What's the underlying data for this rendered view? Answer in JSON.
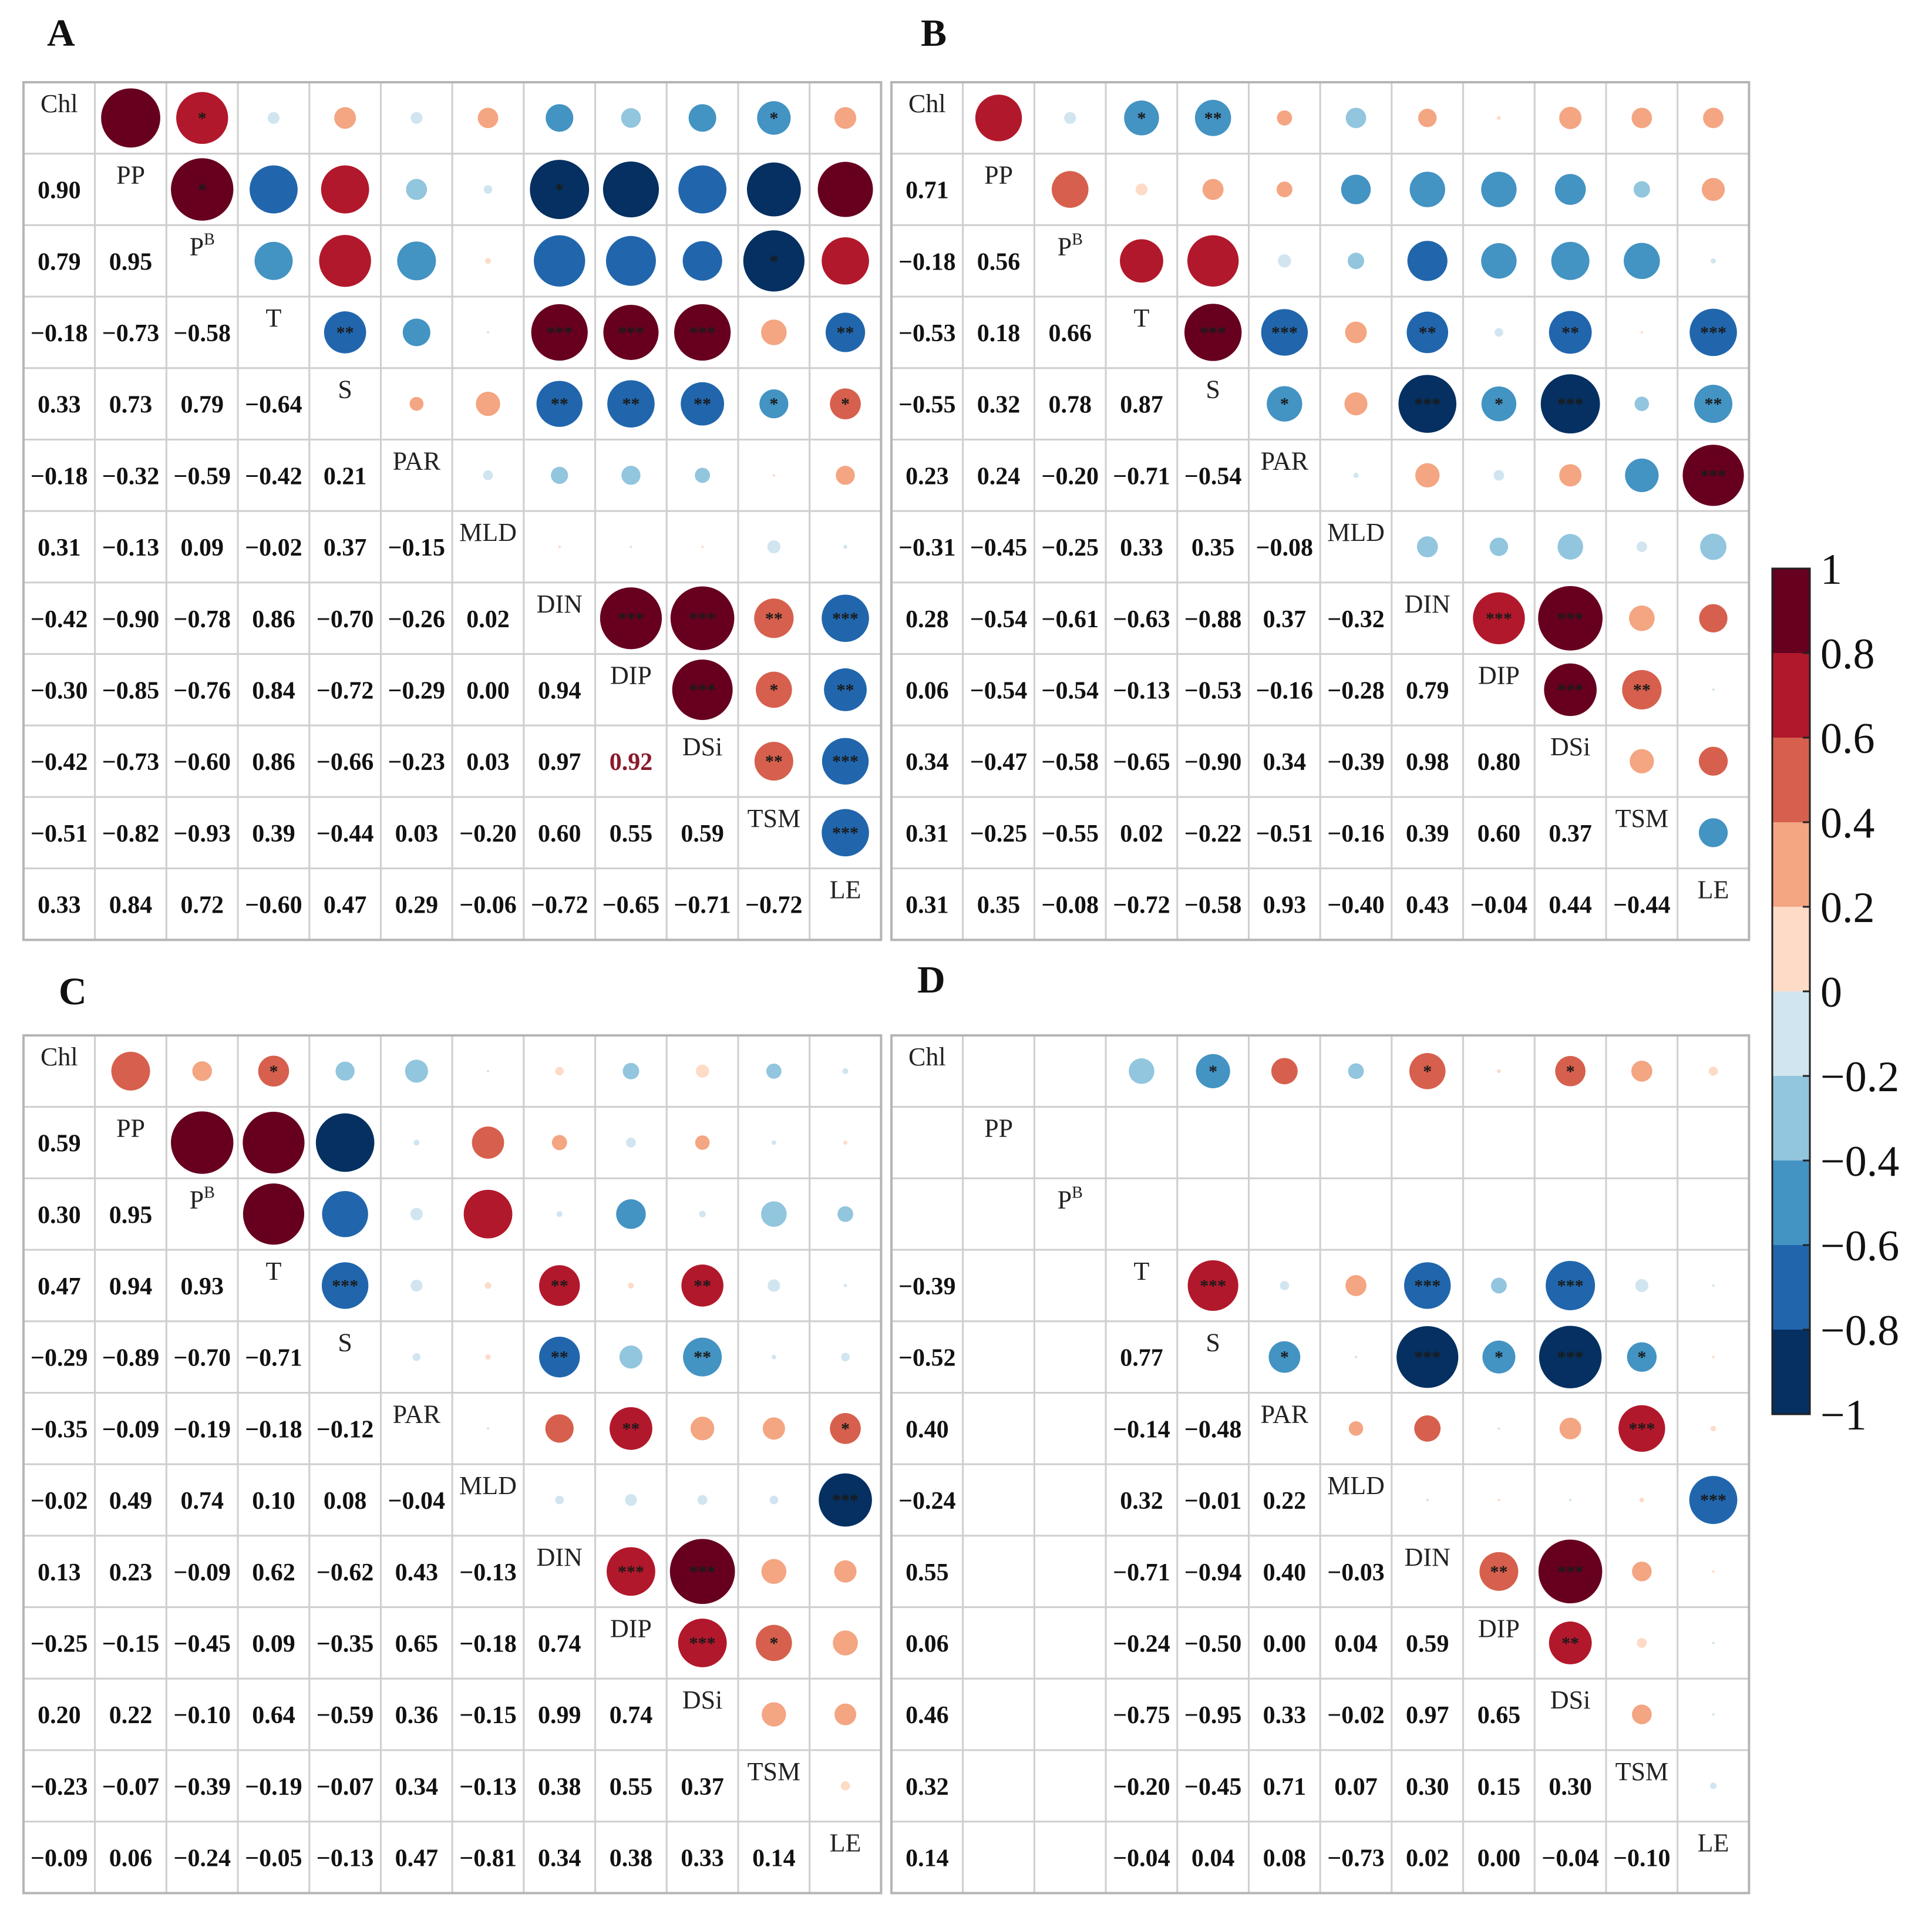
{
  "chart_data": {
    "type": "heatmap",
    "subtype": "correlation-matrix",
    "variables": [
      "Chl",
      "PP",
      "PB",
      "T",
      "S",
      "PAR",
      "MLD",
      "DIN",
      "DIP",
      "DSi",
      "TSM",
      "LE"
    ],
    "colorbar": {
      "range": [
        -1,
        1
      ],
      "ticks": [
        "1",
        "0.8",
        "0.6",
        "0.4",
        "0.2",
        "0",
        "−0.2",
        "−0.4",
        "−0.6",
        "−0.8",
        "−1"
      ],
      "colors": [
        "#67001f",
        "#b2182b",
        "#d6604d",
        "#f4a582",
        "#fddbc7",
        "#d1e5f0",
        "#92c5de",
        "#4393c3",
        "#2166ac",
        "#053061"
      ]
    },
    "panels": [
      {
        "label": "A",
        "lower": [
          [],
          [
            0.9
          ],
          [
            0.79,
            0.95
          ],
          [
            -0.18,
            -0.73,
            -0.58
          ],
          [
            0.33,
            0.73,
            0.79,
            -0.64
          ],
          [
            -0.18,
            -0.32,
            -0.59,
            -0.42,
            0.21
          ],
          [
            0.31,
            -0.13,
            0.09,
            -0.02,
            0.37,
            -0.15
          ],
          [
            -0.42,
            -0.9,
            -0.78,
            0.86,
            -0.7,
            -0.26,
            0.02
          ],
          [
            -0.3,
            -0.85,
            -0.76,
            0.84,
            -0.72,
            -0.29,
            0.0,
            0.94
          ],
          [
            -0.42,
            -0.73,
            -0.6,
            0.86,
            -0.66,
            -0.23,
            0.03,
            0.97,
            0.92
          ],
          [
            -0.51,
            -0.82,
            -0.93,
            0.39,
            -0.44,
            0.03,
            -0.2,
            0.6,
            0.55,
            0.59
          ],
          [
            0.33,
            0.84,
            0.72,
            -0.6,
            0.47,
            0.29,
            -0.06,
            -0.72,
            -0.65,
            -0.71,
            -0.72
          ]
        ],
        "sig": [
          [
            null,
            "",
            "*",
            "",
            "",
            "",
            "",
            "",
            "",
            "",
            "*",
            ""
          ],
          [
            null,
            null,
            "*",
            "",
            "",
            "",
            "",
            "*",
            "",
            "",
            "",
            ""
          ],
          [
            null,
            null,
            null,
            "",
            "",
            "",
            "",
            "",
            "",
            "",
            "*",
            ""
          ],
          [
            null,
            null,
            null,
            null,
            "**",
            "",
            "",
            "***",
            "***",
            "***",
            "",
            "**"
          ],
          [
            null,
            null,
            null,
            null,
            null,
            "",
            "",
            "**",
            "**",
            "**",
            "*",
            "*"
          ],
          [
            null,
            null,
            null,
            null,
            null,
            null,
            "",
            "",
            "",
            "",
            "",
            ""
          ],
          [
            null,
            null,
            null,
            null,
            null,
            null,
            null,
            "",
            "",
            "",
            "",
            ""
          ],
          [
            null,
            null,
            null,
            null,
            null,
            null,
            null,
            null,
            "***",
            "***",
            "**",
            "***"
          ],
          [
            null,
            null,
            null,
            null,
            null,
            null,
            null,
            null,
            null,
            "***",
            "*",
            "**"
          ],
          [
            null,
            null,
            null,
            null,
            null,
            null,
            null,
            null,
            null,
            null,
            "**",
            "***"
          ],
          [
            null,
            null,
            null,
            null,
            null,
            null,
            null,
            null,
            null,
            null,
            null,
            "***"
          ]
        ],
        "highlight": {
          "row": 9,
          "col": 8,
          "color": "#8b1a2b"
        }
      },
      {
        "label": "B",
        "lower": [
          [],
          [
            0.71
          ],
          [
            -0.18,
            0.56
          ],
          [
            -0.53,
            0.18,
            0.66
          ],
          [
            -0.55,
            0.32,
            0.78,
            0.87
          ],
          [
            0.23,
            0.24,
            -0.2,
            -0.71,
            -0.54
          ],
          [
            -0.31,
            -0.45,
            -0.25,
            0.33,
            0.35,
            -0.08
          ],
          [
            0.28,
            -0.54,
            -0.61,
            -0.63,
            -0.88,
            0.37,
            -0.32
          ],
          [
            0.06,
            -0.54,
            -0.54,
            -0.13,
            -0.53,
            -0.16,
            -0.28,
            0.79
          ],
          [
            0.34,
            -0.47,
            -0.58,
            -0.65,
            -0.9,
            0.34,
            -0.39,
            0.98,
            0.8
          ],
          [
            0.31,
            -0.25,
            -0.55,
            0.02,
            -0.22,
            -0.51,
            -0.16,
            0.39,
            0.6,
            0.37
          ],
          [
            0.31,
            0.35,
            -0.08,
            -0.72,
            -0.58,
            0.93,
            -0.4,
            0.43,
            -0.04,
            0.44,
            -0.44
          ]
        ],
        "sig": [
          [
            null,
            "",
            "",
            "*",
            "**",
            "",
            "",
            "",
            "",
            "",
            "",
            ""
          ],
          [
            null,
            null,
            "",
            "",
            "",
            "",
            "",
            "",
            "",
            "",
            "",
            ""
          ],
          [
            null,
            null,
            null,
            "",
            "",
            "",
            "",
            "",
            "",
            "",
            "",
            ""
          ],
          [
            null,
            null,
            null,
            null,
            "***",
            "***",
            "",
            "**",
            "",
            "**",
            "",
            "***"
          ],
          [
            null,
            null,
            null,
            null,
            null,
            "*",
            "",
            "***",
            "*",
            "***",
            "",
            "**"
          ],
          [
            null,
            null,
            null,
            null,
            null,
            null,
            "",
            "",
            "",
            "",
            "",
            "***"
          ],
          [
            null,
            null,
            null,
            null,
            null,
            null,
            null,
            "",
            "",
            "",
            "",
            ""
          ],
          [
            null,
            null,
            null,
            null,
            null,
            null,
            null,
            null,
            "***",
            "***",
            "",
            ""
          ],
          [
            null,
            null,
            null,
            null,
            null,
            null,
            null,
            null,
            null,
            "***",
            "**",
            ""
          ],
          [
            null,
            null,
            null,
            null,
            null,
            null,
            null,
            null,
            null,
            null,
            "",
            ""
          ],
          [
            null,
            null,
            null,
            null,
            null,
            null,
            null,
            null,
            null,
            null,
            null,
            ""
          ]
        ]
      },
      {
        "label": "C",
        "lower": [
          [],
          [
            0.59
          ],
          [
            0.3,
            0.95
          ],
          [
            0.47,
            0.94,
            0.93
          ],
          [
            -0.29,
            -0.89,
            -0.7,
            -0.71
          ],
          [
            -0.35,
            -0.09,
            -0.19,
            -0.18,
            -0.12
          ],
          [
            -0.02,
            0.49,
            0.74,
            0.1,
            0.08,
            -0.04
          ],
          [
            0.13,
            0.23,
            -0.09,
            0.62,
            -0.62,
            0.43,
            -0.13
          ],
          [
            -0.25,
            -0.15,
            -0.45,
            0.09,
            -0.35,
            0.65,
            -0.18,
            0.74
          ],
          [
            0.2,
            0.22,
            -0.1,
            0.64,
            -0.59,
            0.36,
            -0.15,
            0.99,
            0.74
          ],
          [
            -0.23,
            -0.07,
            -0.39,
            -0.19,
            -0.07,
            0.34,
            -0.13,
            0.38,
            0.55,
            0.37
          ],
          [
            -0.09,
            0.06,
            -0.24,
            -0.05,
            -0.13,
            0.47,
            -0.81,
            0.34,
            0.38,
            0.33,
            0.14
          ]
        ],
        "sig": [
          [
            null,
            "",
            "",
            "*",
            "",
            "",
            "",
            "",
            "",
            "",
            "",
            ""
          ],
          [
            null,
            null,
            "",
            "",
            "",
            "",
            "",
            "",
            "",
            "",
            "",
            ""
          ],
          [
            null,
            null,
            null,
            "",
            "",
            "",
            "",
            "",
            "",
            "",
            "",
            ""
          ],
          [
            null,
            null,
            null,
            null,
            "***",
            "",
            "",
            "**",
            "",
            "**",
            "",
            ""
          ],
          [
            null,
            null,
            null,
            null,
            null,
            "",
            "",
            "**",
            "",
            "**",
            "",
            ""
          ],
          [
            null,
            null,
            null,
            null,
            null,
            null,
            "",
            "",
            "**",
            "",
            "",
            "*"
          ],
          [
            null,
            null,
            null,
            null,
            null,
            null,
            null,
            "",
            "",
            "",
            "",
            "***"
          ],
          [
            null,
            null,
            null,
            null,
            null,
            null,
            null,
            null,
            "***",
            "***",
            "",
            ""
          ],
          [
            null,
            null,
            null,
            null,
            null,
            null,
            null,
            null,
            null,
            "***",
            "*",
            ""
          ],
          [
            null,
            null,
            null,
            null,
            null,
            null,
            null,
            null,
            null,
            null,
            "",
            ""
          ],
          [
            null,
            null,
            null,
            null,
            null,
            null,
            null,
            null,
            null,
            null,
            null,
            ""
          ]
        ]
      },
      {
        "label": "D",
        "lower": [
          [],
          [
            null
          ],
          [
            null,
            null
          ],
          [
            -0.39,
            null,
            null
          ],
          [
            -0.52,
            null,
            null,
            0.77
          ],
          [
            0.4,
            null,
            null,
            -0.14,
            -0.48
          ],
          [
            -0.24,
            null,
            null,
            0.32,
            -0.01,
            0.22
          ],
          [
            0.55,
            null,
            null,
            -0.71,
            -0.94,
            0.4,
            -0.03
          ],
          [
            0.06,
            null,
            null,
            -0.24,
            -0.5,
            0.0,
            0.04,
            0.59
          ],
          [
            0.46,
            null,
            null,
            -0.75,
            -0.95,
            0.33,
            -0.02,
            0.97,
            0.65
          ],
          [
            0.32,
            null,
            null,
            -0.2,
            -0.45,
            0.71,
            0.07,
            0.3,
            0.15,
            0.3
          ],
          [
            0.14,
            null,
            null,
            -0.04,
            0.04,
            0.08,
            -0.73,
            0.02,
            0.0,
            -0.04,
            -0.1
          ]
        ],
        "sig": [
          [
            null,
            "",
            "",
            "",
            "*",
            "",
            "",
            "*",
            "",
            "*",
            "",
            ""
          ],
          [
            null,
            null,
            "",
            "",
            "",
            "",
            "",
            "",
            "",
            "",
            "",
            ""
          ],
          [
            null,
            null,
            null,
            "",
            "",
            "",
            "",
            "",
            "",
            "",
            "",
            ""
          ],
          [
            null,
            null,
            null,
            null,
            "***",
            "",
            "",
            "***",
            "",
            "***",
            "",
            ""
          ],
          [
            null,
            null,
            null,
            null,
            null,
            "*",
            "",
            "***",
            "*",
            "***",
            "*",
            ""
          ],
          [
            null,
            null,
            null,
            null,
            null,
            null,
            "",
            "",
            "",
            "",
            "***",
            ""
          ],
          [
            null,
            null,
            null,
            null,
            null,
            null,
            null,
            "",
            "",
            "",
            "",
            "***"
          ],
          [
            null,
            null,
            null,
            null,
            null,
            null,
            null,
            null,
            "**",
            "***",
            "",
            ""
          ],
          [
            null,
            null,
            null,
            null,
            null,
            null,
            null,
            null,
            null,
            "**",
            "",
            ""
          ],
          [
            null,
            null,
            null,
            null,
            null,
            null,
            null,
            null,
            null,
            null,
            "",
            ""
          ],
          [
            null,
            null,
            null,
            null,
            null,
            null,
            null,
            null,
            null,
            null,
            null,
            ""
          ]
        ]
      }
    ]
  }
}
